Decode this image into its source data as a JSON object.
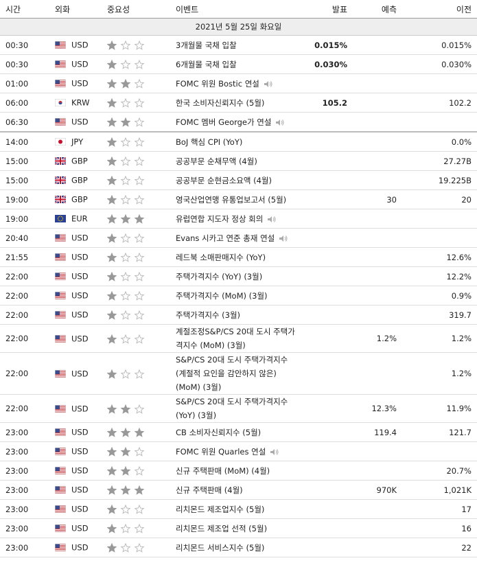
{
  "header": {
    "columns": [
      "시간",
      "외화",
      "중요성",
      "이벤트",
      "발표",
      "예측",
      "이전"
    ]
  },
  "date": "2021년 5월 25일 화요일",
  "rows": [
    {
      "time": "00:30",
      "currency": "USD",
      "importance": 1,
      "event": "3개월물 국채 입찰",
      "actual": "0.015%",
      "forecast": null,
      "previous": "0.015%"
    },
    {
      "time": "00:30",
      "currency": "USD",
      "importance": 1,
      "event": "6개월물 국채 입찰",
      "actual": "0.030%",
      "forecast": null,
      "previous": "0.030%"
    },
    {
      "time": "01:00",
      "currency": "USD",
      "importance": 2,
      "event": "FOMC 위원 Bostic 연설",
      "actual": null,
      "forecast": null,
      "previous": null
    },
    {
      "time": "06:00",
      "currency": "KRW",
      "importance": 1,
      "event": "한국 소비자신뢰지수 (5월)",
      "actual": "105.2",
      "forecast": null,
      "previous": "102.2"
    },
    {
      "time": "06:30",
      "currency": "USD",
      "importance": 2,
      "event": "FOMC 멤버 George가 연설",
      "actual": null,
      "forecast": null,
      "previous": null
    },
    {
      "time": "14:00",
      "currency": "JPY",
      "importance": 1,
      "event": "BoJ 핵심 CPI (YoY)",
      "actual": null,
      "forecast": null,
      "previous": "0.0%"
    },
    {
      "time": "15:00",
      "currency": "GBP",
      "importance": 1,
      "event": "공공부문 순채무액 (4월)",
      "actual": null,
      "forecast": null,
      "previous": "27.27B"
    },
    {
      "time": "15:00",
      "currency": "GBP",
      "importance": 1,
      "event": "공공부문 순현금소요액 (4월)",
      "actual": null,
      "forecast": null,
      "previous": "19.225B"
    },
    {
      "time": "19:00",
      "currency": "GBP",
      "importance": 1,
      "event": "영국산업연맹 유통업보고서 (5월)",
      "actual": null,
      "forecast": "30",
      "previous": "20"
    },
    {
      "time": "19:00",
      "currency": "EUR",
      "importance": 3,
      "event": "유럽연합 지도자 정상 회의",
      "actual": null,
      "forecast": null,
      "previous": null
    },
    {
      "time": "20:40",
      "currency": "USD",
      "importance": 1,
      "event": "Evans 시카고 연준 총재 연설",
      "actual": null,
      "forecast": null,
      "previous": null
    },
    {
      "time": "21:55",
      "currency": "USD",
      "importance": 1,
      "event": "레드북 소매판매지수 (YoY)",
      "actual": null,
      "forecast": null,
      "previous": "12.6%"
    },
    {
      "time": "22:00",
      "currency": "USD",
      "importance": 1,
      "event": "주택가격지수 (YoY) (3월)",
      "actual": null,
      "forecast": null,
      "previous": "12.2%"
    },
    {
      "time": "22:00",
      "currency": "USD",
      "importance": 1,
      "event": "주택가격지수 (MoM) (3월)",
      "actual": null,
      "forecast": null,
      "previous": "0.9%"
    },
    {
      "time": "22:00",
      "currency": "USD",
      "importance": 1,
      "event": "주택가격지수 (3월)",
      "actual": null,
      "forecast": null,
      "previous": "319.7"
    },
    {
      "time": "22:00",
      "currency": "USD",
      "importance": 1,
      "event": "계절조정S&P/CS 20대 도시 주택가격지수 (MoM) (3월)",
      "actual": null,
      "forecast": "1.2%",
      "previous": "1.2%"
    },
    {
      "time": "22:00",
      "currency": "USD",
      "importance": 1,
      "event": "S&P/CS 20대 도시 주택가격지수 (계절적 요인을 감안하지 않은) (MoM) (3월)",
      "actual": null,
      "forecast": null,
      "previous": "1.2%"
    },
    {
      "time": "22:00",
      "currency": "USD",
      "importance": 2,
      "event": "S&P/CS 20대 도시 주택가격지수 (YoY) (3월)",
      "actual": null,
      "forecast": "12.3%",
      "previous": "11.9%"
    },
    {
      "time": "23:00",
      "currency": "USD",
      "importance": 3,
      "event": "CB 소비자신뢰지수 (5월)",
      "actual": null,
      "forecast": "119.4",
      "previous": "121.7"
    },
    {
      "time": "23:00",
      "currency": "USD",
      "importance": 2,
      "event": "FOMC 위원 Quarles 연설",
      "actual": null,
      "forecast": null,
      "previous": null
    },
    {
      "time": "23:00",
      "currency": "USD",
      "importance": 2,
      "event": "신규 주택판매 (MoM) (4월)",
      "actual": null,
      "forecast": null,
      "previous": "20.7%"
    },
    {
      "time": "23:00",
      "currency": "USD",
      "importance": 3,
      "event": "신규 주택판매 (4월)",
      "actual": null,
      "forecast": "970K",
      "previous": "1,021K"
    },
    {
      "time": "23:00",
      "currency": "USD",
      "importance": 1,
      "event": "리치몬드 제조업지수 (5월)",
      "actual": null,
      "forecast": null,
      "previous": "17"
    },
    {
      "time": "23:00",
      "currency": "USD",
      "importance": 1,
      "event": "리치몬드 제조업 선적 (5월)",
      "actual": null,
      "forecast": null,
      "previous": "16"
    },
    {
      "time": "23:00",
      "currency": "USD",
      "importance": 1,
      "event": "리치몬드 서비스지수 (5월)",
      "actual": null,
      "forecast": null,
      "previous": "22"
    }
  ]
}
